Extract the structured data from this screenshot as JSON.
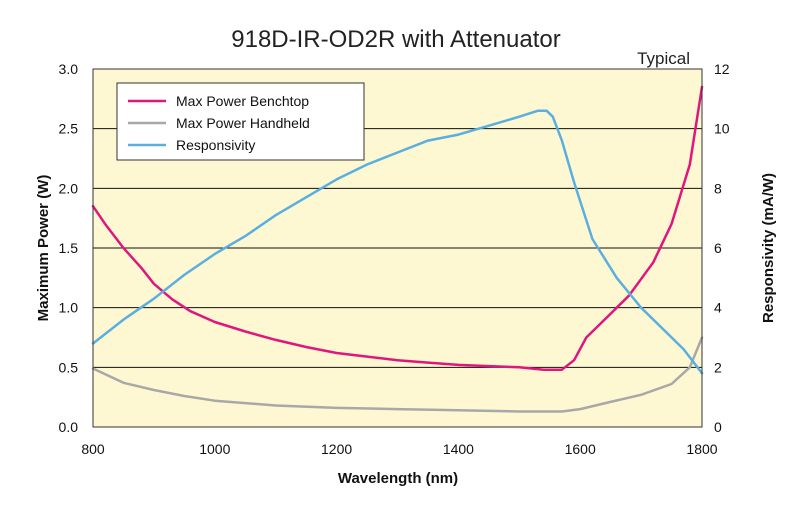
{
  "chart_data": {
    "type": "line",
    "title": "918D-IR-OD2R with Attenuator",
    "annotation": "Typical",
    "xlabel": "Wavelength (nm)",
    "ylabel": "Maximum Power (W)",
    "y2label": "Responsivity  (mA/W)",
    "xlim": [
      800,
      1800
    ],
    "ylim": [
      0,
      3.0
    ],
    "y2lim": [
      0,
      12
    ],
    "xticks": [
      "800",
      "1000",
      "1200",
      "1400",
      "1600",
      "1800"
    ],
    "yticks": [
      "0.0",
      "0.5",
      "1.0",
      "1.5",
      "2.0",
      "2.5",
      "3.0"
    ],
    "y2ticks": [
      "0",
      "2",
      "4",
      "6",
      "8",
      "10",
      "12"
    ],
    "grid": true,
    "legend_position": "top-left",
    "plot_background": "#fdf8d2",
    "series": [
      {
        "name": "Max Power Benchtop",
        "axis": "left",
        "color": "#e0167e",
        "x": [
          800,
          820,
          850,
          880,
          900,
          930,
          960,
          1000,
          1050,
          1100,
          1150,
          1200,
          1250,
          1300,
          1350,
          1400,
          1450,
          1500,
          1540,
          1570,
          1590,
          1610,
          1640,
          1680,
          1720,
          1750,
          1780,
          1800
        ],
        "y": [
          1.85,
          1.7,
          1.5,
          1.33,
          1.2,
          1.07,
          0.97,
          0.88,
          0.8,
          0.73,
          0.67,
          0.62,
          0.59,
          0.56,
          0.54,
          0.52,
          0.51,
          0.5,
          0.48,
          0.48,
          0.56,
          0.75,
          0.9,
          1.1,
          1.38,
          1.7,
          2.2,
          2.85
        ]
      },
      {
        "name": "Max Power Handheld",
        "axis": "left",
        "color": "#a8a8a8",
        "x": [
          800,
          850,
          900,
          950,
          1000,
          1100,
          1200,
          1300,
          1400,
          1500,
          1570,
          1600,
          1650,
          1700,
          1750,
          1780,
          1800
        ],
        "y": [
          0.49,
          0.37,
          0.31,
          0.26,
          0.22,
          0.18,
          0.16,
          0.15,
          0.14,
          0.13,
          0.13,
          0.15,
          0.21,
          0.27,
          0.36,
          0.5,
          0.75
        ]
      },
      {
        "name": "Responsivity",
        "axis": "right",
        "color": "#5aafe0",
        "x": [
          800,
          850,
          900,
          950,
          1000,
          1050,
          1100,
          1150,
          1200,
          1250,
          1300,
          1350,
          1400,
          1450,
          1500,
          1530,
          1545,
          1555,
          1570,
          1590,
          1620,
          1660,
          1700,
          1740,
          1770,
          1800
        ],
        "y": [
          2.8,
          3.6,
          4.3,
          5.1,
          5.8,
          6.4,
          7.1,
          7.7,
          8.3,
          8.8,
          9.2,
          9.6,
          9.8,
          10.1,
          10.4,
          10.6,
          10.6,
          10.4,
          9.6,
          8.2,
          6.3,
          5.0,
          4.0,
          3.2,
          2.6,
          1.8
        ]
      }
    ]
  }
}
